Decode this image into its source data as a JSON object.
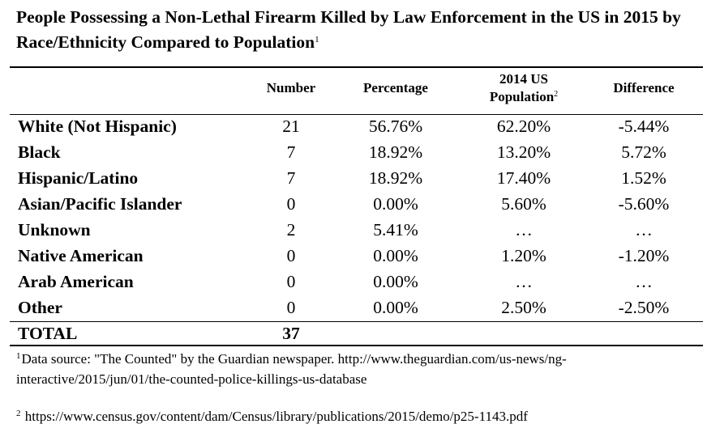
{
  "title": {
    "text": "People Possessing a Non-Lethal Firearm Killed by Law Enforcement in the US in 2015 by Race/Ethnicity Compared to Population",
    "footnote_marker": "1"
  },
  "headers": {
    "number": "Number",
    "percentage": "Percentage",
    "population_line1": "2014 US",
    "population_line2": "Population",
    "population_marker": "2",
    "difference": "Difference"
  },
  "rows": [
    {
      "label": "White (Not Hispanic)",
      "number": "21",
      "percentage": "56.76%",
      "population": "62.20%",
      "difference": "-5.44%"
    },
    {
      "label": "Black",
      "number": "7",
      "percentage": "18.92%",
      "population": "13.20%",
      "difference": "5.72%"
    },
    {
      "label": "Hispanic/Latino",
      "number": "7",
      "percentage": "18.92%",
      "population": "17.40%",
      "difference": "1.52%"
    },
    {
      "label": "Asian/Pacific Islander",
      "number": "0",
      "percentage": "0.00%",
      "population": "5.60%",
      "difference": "-5.60%"
    },
    {
      "label": "Unknown",
      "number": "2",
      "percentage": "5.41%",
      "population": "…",
      "difference": "…"
    },
    {
      "label": "Native American",
      "number": "0",
      "percentage": "0.00%",
      "population": "1.20%",
      "difference": "-1.20%"
    },
    {
      "label": "Arab American",
      "number": "0",
      "percentage": "0.00%",
      "population": "…",
      "difference": "…"
    },
    {
      "label": "Other",
      "number": "0",
      "percentage": "0.00%",
      "population": "2.50%",
      "difference": "-2.50%"
    }
  ],
  "total": {
    "label": "TOTAL",
    "number": "37"
  },
  "footnotes": [
    {
      "marker": "1",
      "text": "Data source: \"The Counted\" by the Guardian newspaper. http://www.theguardian.com/us-news/ng-interactive/2015/jun/01/the-counted-police-killings-us-database"
    },
    {
      "marker": "2",
      "text": "https://www.census.gov/content/dam/Census/library/publications/2015/demo/p25-1143.pdf"
    }
  ]
}
